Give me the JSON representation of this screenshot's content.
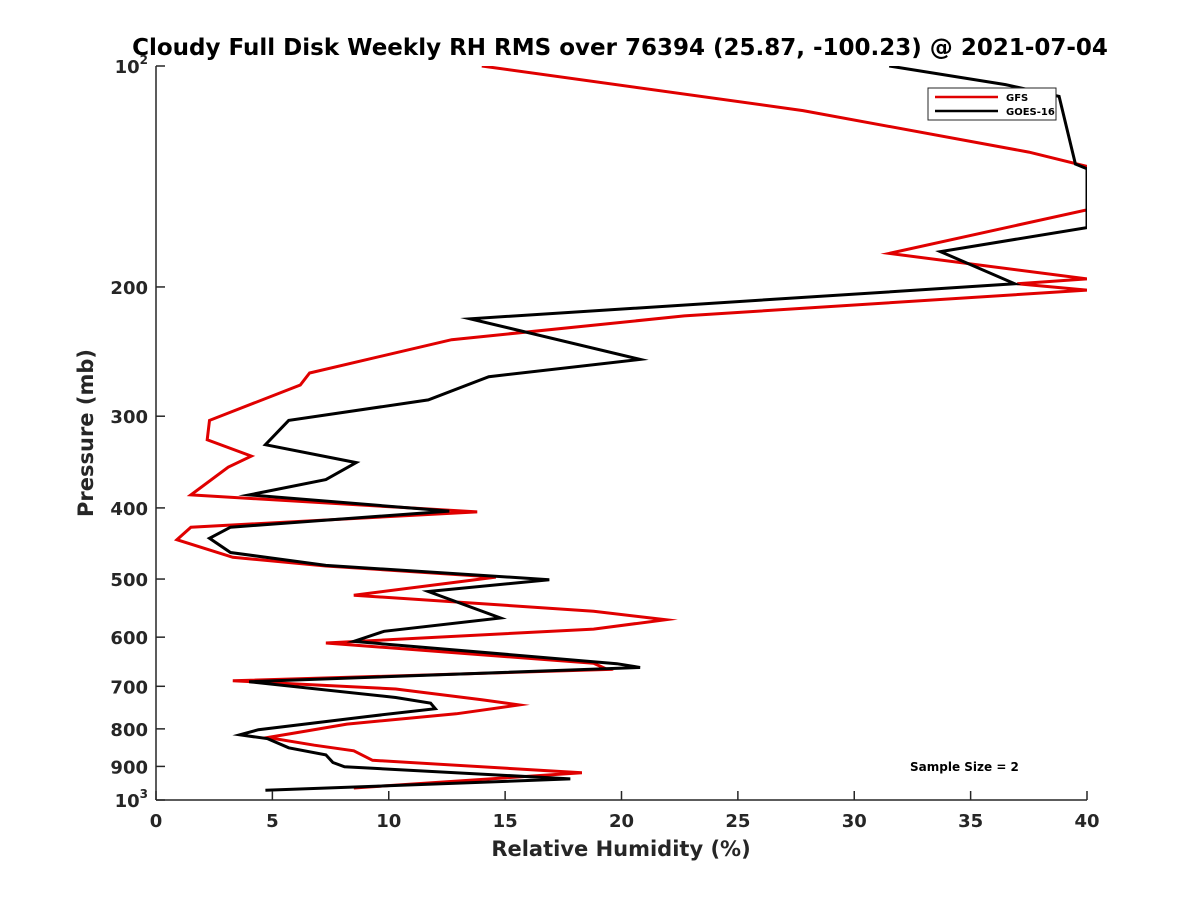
{
  "chart_data": {
    "type": "line",
    "title": "Cloudy Full Disk Weekly RH RMS over 76394 (25.87, -100.23) @ 2021-07-04",
    "xlabel": "Relative Humidity (%)",
    "ylabel": "Pressure (mb)",
    "xlim": [
      0,
      40
    ],
    "ylim": [
      100,
      1000
    ],
    "y_scale": "log",
    "y_reversed": true,
    "x_ticks": [
      "0",
      "5",
      "10",
      "15",
      "20",
      "25",
      "30",
      "35",
      "40"
    ],
    "y_ticks": [
      {
        "value": 100,
        "base": "10",
        "exp": "2"
      },
      {
        "value": 200,
        "label": "200"
      },
      {
        "value": 300,
        "label": "300"
      },
      {
        "value": 400,
        "label": "400"
      },
      {
        "value": 500,
        "label": "500"
      },
      {
        "value": 600,
        "label": "600"
      },
      {
        "value": 700,
        "label": "700"
      },
      {
        "value": 800,
        "label": "800"
      },
      {
        "value": 900,
        "label": "900"
      },
      {
        "value": 1000,
        "base": "10",
        "exp": "3"
      }
    ],
    "grid": false,
    "legend_position": "top-right",
    "annotation": "Sample Size = 2",
    "series": [
      {
        "name": "GFS",
        "color": "#e00000",
        "points": [
          [
            14,
            100
          ],
          [
            27.8,
            115
          ],
          [
            37.5,
            131
          ],
          [
            40,
            137
          ],
          [
            40,
            157
          ],
          [
            31.5,
            180
          ],
          [
            40,
            195
          ],
          [
            37,
            198
          ],
          [
            40,
            202
          ],
          [
            22.7,
            219
          ],
          [
            12.7,
            236
          ],
          [
            6.6,
            262
          ],
          [
            6.2,
            272
          ],
          [
            2.3,
            304
          ],
          [
            2.2,
            323
          ],
          [
            4.1,
            340
          ],
          [
            3.1,
            352
          ],
          [
            1.5,
            384
          ],
          [
            13.8,
            405
          ],
          [
            1.5,
            425
          ],
          [
            0.9,
            442
          ],
          [
            3.3,
            467
          ],
          [
            7.3,
            480
          ],
          [
            14.6,
            497
          ],
          [
            8.5,
            526
          ],
          [
            18.8,
            553
          ],
          [
            21.9,
            568
          ],
          [
            18.8,
            585
          ],
          [
            7.3,
            611
          ],
          [
            18.8,
            651
          ],
          [
            19.4,
            664
          ],
          [
            3.3,
            688
          ],
          [
            10.3,
            706
          ],
          [
            14,
            730
          ],
          [
            15.6,
            742
          ],
          [
            12.9,
            763
          ],
          [
            8.2,
            788
          ],
          [
            5.8,
            812
          ],
          [
            4.8,
            822
          ],
          [
            6.8,
            842
          ],
          [
            8.5,
            857
          ],
          [
            9.3,
            883
          ],
          [
            18.3,
            918
          ],
          [
            8.5,
            963
          ]
        ]
      },
      {
        "name": "GOES-16",
        "color": "#000000",
        "points": [
          [
            31.5,
            100
          ],
          [
            36.5,
            106
          ],
          [
            38.8,
            110
          ],
          [
            39.5,
            136
          ],
          [
            40,
            138
          ],
          [
            40,
            166
          ],
          [
            33.7,
            179
          ],
          [
            36.9,
            198
          ],
          [
            13.5,
            221
          ],
          [
            20.8,
            251
          ],
          [
            14.3,
            265
          ],
          [
            11.7,
            285
          ],
          [
            5.7,
            304
          ],
          [
            4.7,
            328
          ],
          [
            8.6,
            347
          ],
          [
            7.3,
            366
          ],
          [
            4,
            384
          ],
          [
            12.6,
            404
          ],
          [
            3.2,
            425
          ],
          [
            2.3,
            440
          ],
          [
            3.2,
            460
          ],
          [
            7.3,
            479
          ],
          [
            16.9,
            501
          ],
          [
            11.7,
            520
          ],
          [
            14.8,
            565
          ],
          [
            9.8,
            589
          ],
          [
            8.5,
            608
          ],
          [
            19.8,
            652
          ],
          [
            20.8,
            660
          ],
          [
            4,
            690
          ],
          [
            10.3,
            725
          ],
          [
            11.8,
            738
          ],
          [
            12,
            751
          ],
          [
            9,
            770
          ],
          [
            4.4,
            802
          ],
          [
            3.6,
            815
          ],
          [
            4.8,
            825
          ],
          [
            5.7,
            849
          ],
          [
            7.3,
            868
          ],
          [
            7.6,
            889
          ],
          [
            8.1,
            901
          ],
          [
            17.8,
            936
          ],
          [
            4.7,
            970
          ]
        ]
      }
    ]
  }
}
